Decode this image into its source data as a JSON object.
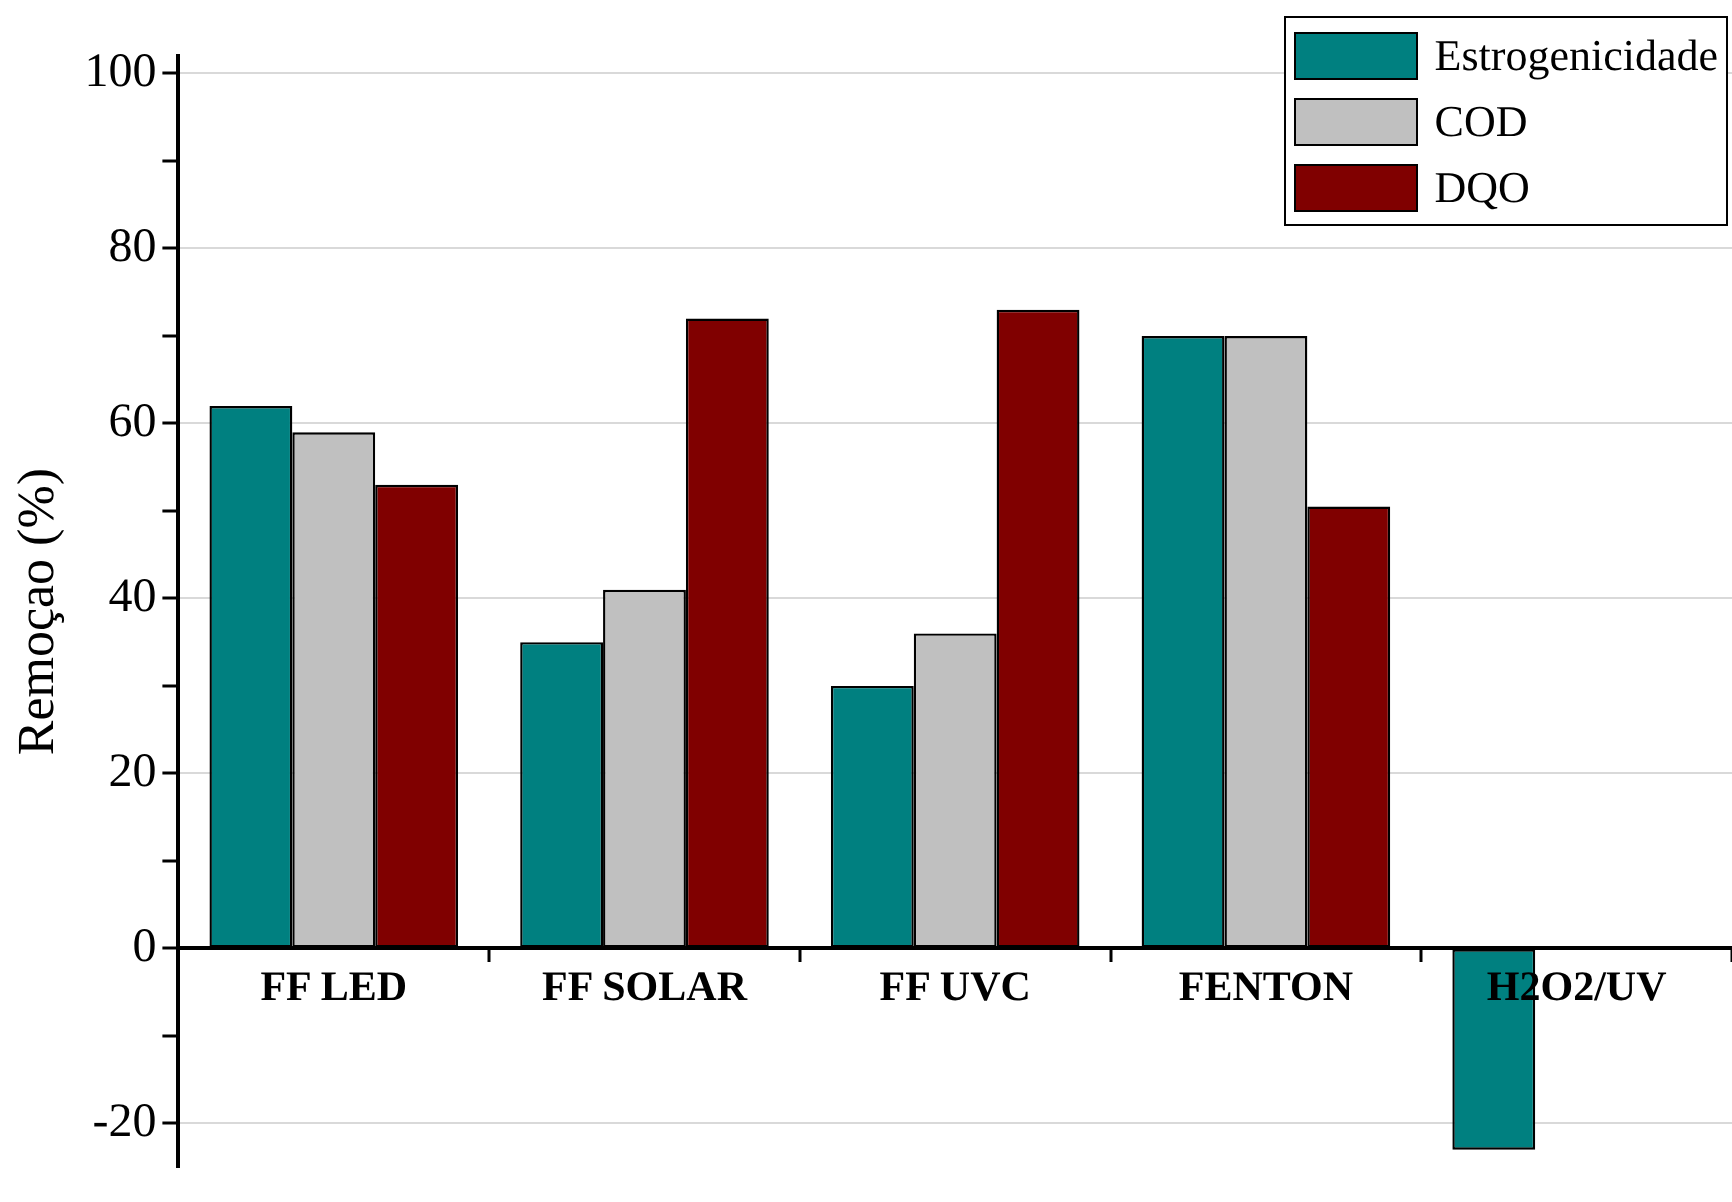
{
  "chart_data": {
    "type": "bar",
    "ylabel": "Remoçao (%)",
    "categories": [
      "FF LED",
      "FF SOLAR",
      "FF UVC",
      "FENTON",
      "H2O2/UV"
    ],
    "series": [
      {
        "name": "Estrogenicidade",
        "color": "#008080",
        "values": [
          62,
          35,
          30,
          70,
          -23
        ]
      },
      {
        "name": "COD",
        "color": "#c0c0c0",
        "values": [
          59,
          41,
          36,
          70,
          0
        ]
      },
      {
        "name": "DQO",
        "color": "#800000",
        "values": [
          53,
          72,
          73,
          50.5,
          0
        ]
      }
    ],
    "ylim": [
      -25,
      102
    ],
    "yticks": [
      -20,
      {
        "value": -10,
        "label": null
      },
      0,
      {
        "value": 10,
        "label": null
      },
      20,
      {
        "value": 30,
        "label": null
      },
      40,
      {
        "value": 50,
        "label": null
      },
      60,
      {
        "value": 70,
        "label": null
      },
      80,
      {
        "value": 90,
        "label": null
      },
      100
    ],
    "grid": "y",
    "legend": "top right"
  }
}
